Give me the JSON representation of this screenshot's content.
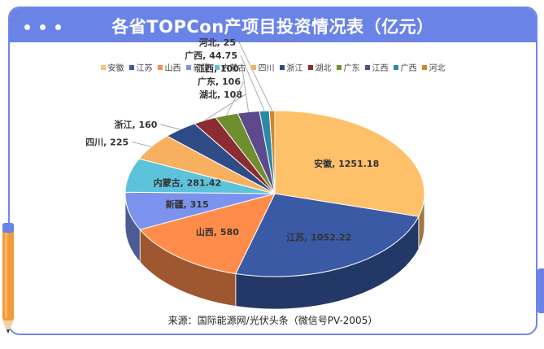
{
  "page": {
    "title": "各省TOPCon产项目投资情况表（亿元）",
    "source": "来源：国际能源网/光伏头条（微信号PV-2005）"
  },
  "chart_data": {
    "type": "pie",
    "title": "各省TOPCon产项目投资情况表（亿元）",
    "legend_position": "top",
    "slices": [
      {
        "name": "安徽",
        "value": 1251.18,
        "color": "#FFC06A",
        "label": "安徽, 1251.18"
      },
      {
        "name": "江苏",
        "value": 1052.22,
        "color": "#3A5AA6",
        "label": "江苏, 1052.22"
      },
      {
        "name": "山西",
        "value": 580,
        "color": "#FF8C4A",
        "label": "山西, 580"
      },
      {
        "name": "新疆",
        "value": 315,
        "color": "#7B93EE",
        "label": "新疆, 315"
      },
      {
        "name": "内蒙古",
        "value": 281.42,
        "color": "#5CC3DB",
        "label": "内蒙古, 281.42"
      },
      {
        "name": "四川",
        "value": 225,
        "color": "#F7B060",
        "label": "四川, 225"
      },
      {
        "name": "浙江",
        "value": 160,
        "color": "#2F4C86",
        "label": "浙江, 160"
      },
      {
        "name": "湖北",
        "value": 108,
        "color": "#8B2C33",
        "label": "湖北, 108"
      },
      {
        "name": "广东",
        "value": 106,
        "color": "#6F8F2E",
        "label": "广东, 106"
      },
      {
        "name": "江西",
        "value": 100,
        "color": "#5C4A8C",
        "label": "江西, 100"
      },
      {
        "name": "广西",
        "value": 44.75,
        "color": "#2A8AA6",
        "label": "广西, 44.75"
      },
      {
        "name": "河北",
        "value": 25,
        "color": "#D9822B",
        "label": "河北, 25"
      }
    ]
  }
}
